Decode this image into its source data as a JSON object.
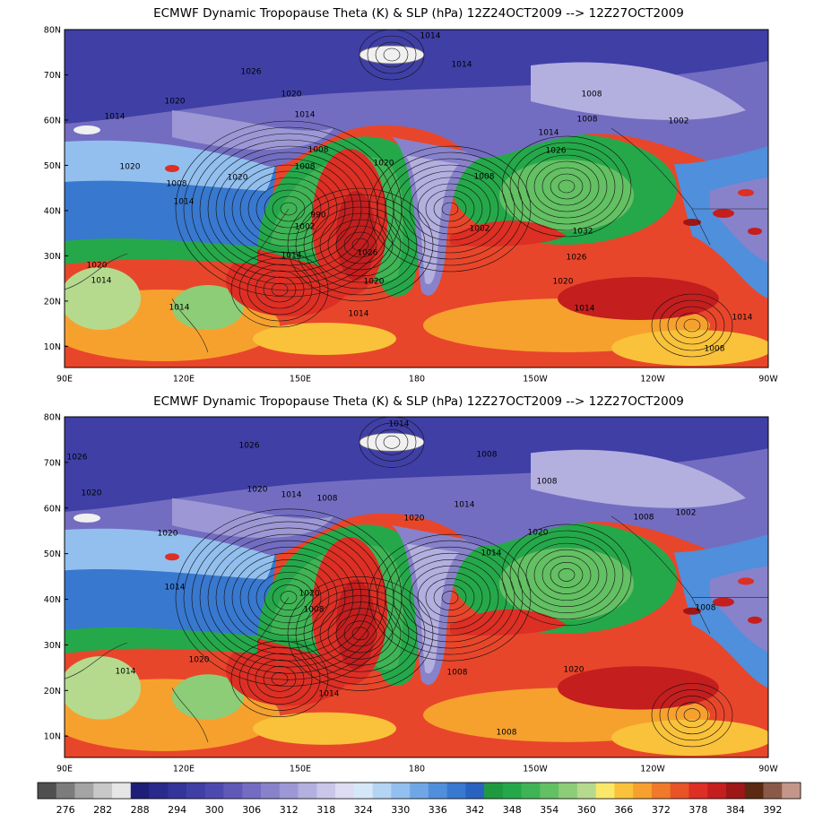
{
  "panels": [
    {
      "title": "ECMWF Dynamic Tropopause Theta (K) & SLP (hPa) 12Z24OCT2009 --> 12Z27OCT2009",
      "lat_labels": [
        "80N",
        "70N",
        "60N",
        "50N",
        "40N",
        "30N",
        "20N",
        "10N"
      ],
      "lon_labels": [
        "90E",
        "120E",
        "150E",
        "180",
        "150W",
        "120W",
        "90W"
      ],
      "contour_labels": [
        "1014",
        "1014",
        "1026",
        "1020",
        "1020",
        "1014",
        "1014",
        "1008",
        "1008",
        "1002",
        "1014",
        "1020",
        "1008",
        "1020",
        "1008",
        "1008",
        "1020",
        "1026",
        "1008",
        "1014",
        "990",
        "1002",
        "1026",
        "1002",
        "1032",
        "1026",
        "1014",
        "1020",
        "1020",
        "1014",
        "1020",
        "1014",
        "1014",
        "1014",
        "1014",
        "1008"
      ]
    },
    {
      "title": "ECMWF Dynamic Tropopause Theta (K) & SLP (hPa) 12Z27OCT2009 --> 12Z27OCT2009",
      "lat_labels": [
        "80N",
        "70N",
        "60N",
        "50N",
        "40N",
        "30N",
        "20N",
        "10N"
      ],
      "lon_labels": [
        "90E",
        "120E",
        "150E",
        "180",
        "150W",
        "120W",
        "90W"
      ],
      "contour_labels": [
        "1014",
        "1026",
        "1026",
        "1008",
        "1020",
        "1020",
        "1014",
        "1008",
        "1014",
        "1008",
        "1020",
        "1008",
        "1002",
        "1020",
        "1014",
        "1020",
        "1014",
        "1020",
        "1008",
        "1020",
        "1014",
        "1008",
        "1020",
        "1014",
        "1008",
        "1008"
      ]
    }
  ],
  "colorbar": {
    "labels": [
      "276",
      "282",
      "288",
      "294",
      "300",
      "306",
      "312",
      "318",
      "324",
      "330",
      "336",
      "342",
      "348",
      "354",
      "360",
      "366",
      "372",
      "378",
      "384",
      "392"
    ],
    "colors": [
      "#505050",
      "#7c7c7c",
      "#a4a4a4",
      "#c8c8c8",
      "#e6e6e6",
      "#1e1e78",
      "#2a2a8c",
      "#34349a",
      "#3f3fa6",
      "#4d4aaf",
      "#5f5ab8",
      "#736dc1",
      "#8882cb",
      "#9d98d5",
      "#b3afdf",
      "#c9c6e9",
      "#dedcf2",
      "#d6e8f8",
      "#b4d4f4",
      "#92bfee",
      "#6fa7e6",
      "#4f8fdc",
      "#3878cf",
      "#2a62c0",
      "#1f9a3f",
      "#25a84a",
      "#3fb455",
      "#63c063",
      "#8dcd77",
      "#b5da8e",
      "#fbe76a",
      "#f9c23a",
      "#f6a12e",
      "#f07a2a",
      "#e85328",
      "#dd2f24",
      "#c41e1e",
      "#9e1616",
      "#5c2a12",
      "#8a5a48",
      "#c4968a"
    ]
  }
}
